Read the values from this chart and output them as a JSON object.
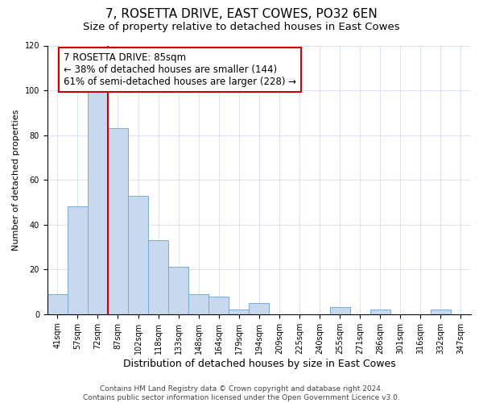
{
  "title": "7, ROSETTA DRIVE, EAST COWES, PO32 6EN",
  "subtitle": "Size of property relative to detached houses in East Cowes",
  "xlabel": "Distribution of detached houses by size in East Cowes",
  "ylabel": "Number of detached properties",
  "bar_labels": [
    "41sqm",
    "57sqm",
    "72sqm",
    "87sqm",
    "102sqm",
    "118sqm",
    "133sqm",
    "148sqm",
    "164sqm",
    "179sqm",
    "194sqm",
    "209sqm",
    "225sqm",
    "240sqm",
    "255sqm",
    "271sqm",
    "286sqm",
    "301sqm",
    "316sqm",
    "332sqm",
    "347sqm"
  ],
  "bar_values": [
    9,
    48,
    100,
    83,
    53,
    33,
    21,
    9,
    8,
    2,
    5,
    0,
    0,
    0,
    3,
    0,
    2,
    0,
    0,
    2,
    0
  ],
  "bar_color": "#c8d8ee",
  "bar_edge_color": "#7aaad0",
  "ylim": [
    0,
    120
  ],
  "yticks": [
    0,
    20,
    40,
    60,
    80,
    100,
    120
  ],
  "vline_x": 2.5,
  "vline_color": "#cc0000",
  "annotation_text": "7 ROSETTA DRIVE: 85sqm\n← 38% of detached houses are smaller (144)\n61% of semi-detached houses are larger (228) →",
  "annotation_box_color": "#ffffff",
  "annotation_box_edge": "#cc0000",
  "footer_text": "Contains HM Land Registry data © Crown copyright and database right 2024.\nContains public sector information licensed under the Open Government Licence v3.0.",
  "title_fontsize": 11,
  "subtitle_fontsize": 9.5,
  "ylabel_fontsize": 8,
  "xlabel_fontsize": 9,
  "tick_fontsize": 7,
  "annotation_fontsize": 8.5,
  "footer_fontsize": 6.5
}
